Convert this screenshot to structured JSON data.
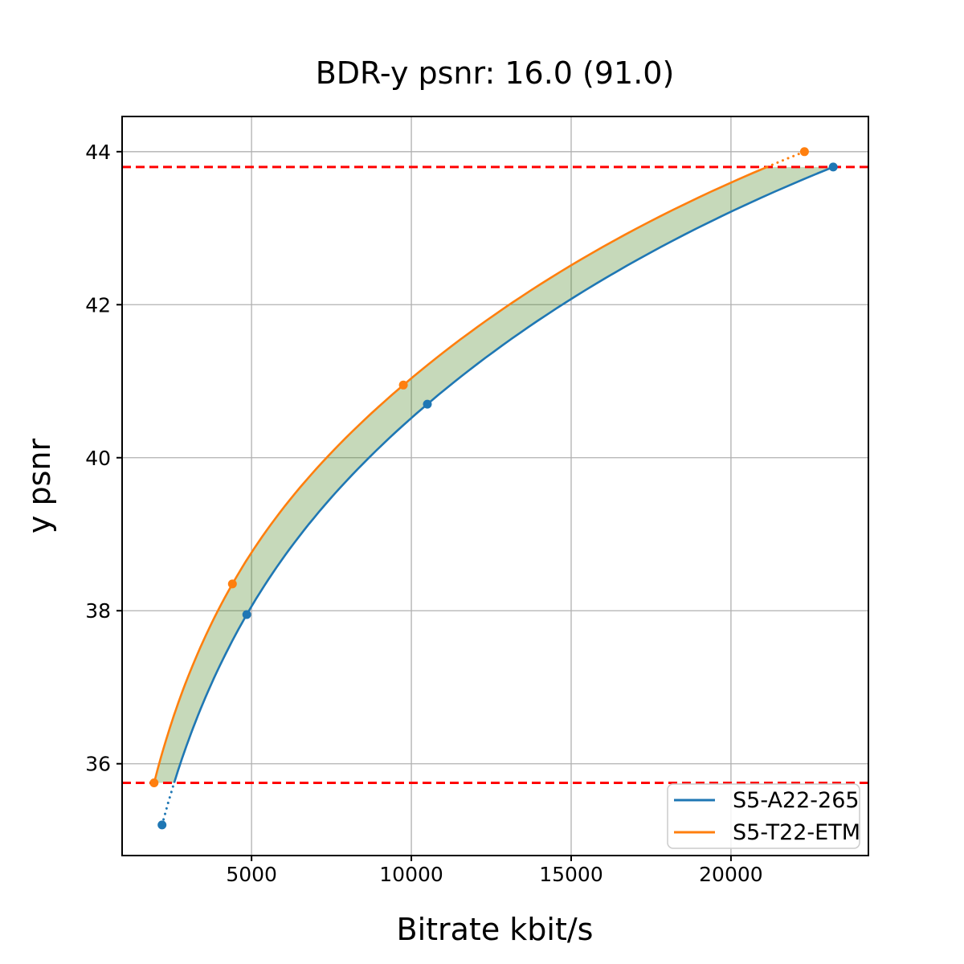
{
  "title": "BDR-y psnr: 16.0 (91.0)",
  "xlabel": "Bitrate kbit/s",
  "ylabel": "y psnr",
  "legend": {
    "position": "lower right",
    "items": [
      {
        "label": "S5-A22-265",
        "color": "#1f77b4"
      },
      {
        "label": "S5-T22-ETM",
        "color": "#ff7f0e"
      }
    ]
  },
  "colors": {
    "series_blue": "#1f77b4",
    "series_orange": "#ff7f0e",
    "band_fill": "rgba(65,128,28,0.3)",
    "reference_line": "#ff0000",
    "grid": "#b0b0b0"
  },
  "chart_data": {
    "type": "line",
    "title": "BDR-y psnr: 16.0 (91.0)",
    "xlabel": "Bitrate kbit/s",
    "ylabel": "y psnr",
    "xlim": [
      950,
      24300
    ],
    "ylim": [
      34.8,
      44.46
    ],
    "xticks": [
      5000,
      10000,
      15000,
      20000
    ],
    "yticks": [
      36,
      38,
      40,
      42,
      44
    ],
    "grid": true,
    "legend_position": "lower right",
    "series": [
      {
        "name": "S5-A22-265",
        "color": "#1f77b4",
        "marker": "circle",
        "points": [
          [
            2200,
            35.2
          ],
          [
            4850,
            37.95
          ],
          [
            10500,
            40.7
          ],
          [
            23200,
            43.8
          ]
        ]
      },
      {
        "name": "S5-T22-ETM",
        "color": "#ff7f0e",
        "marker": "circle",
        "points": [
          [
            1950,
            35.75
          ],
          [
            4400,
            38.35
          ],
          [
            9750,
            40.95
          ],
          [
            22300,
            44.0
          ]
        ]
      }
    ],
    "overlap_band": {
      "psnr_low": 35.75,
      "psnr_high": 43.8,
      "fill_color": "rgba(65,128,28,0.3)"
    },
    "ref_lines_y": [
      43.8,
      35.75
    ],
    "note": "solid curves span the overlap psnr interval [35.75, 43.8]; dotted extensions reach outlying data points"
  }
}
